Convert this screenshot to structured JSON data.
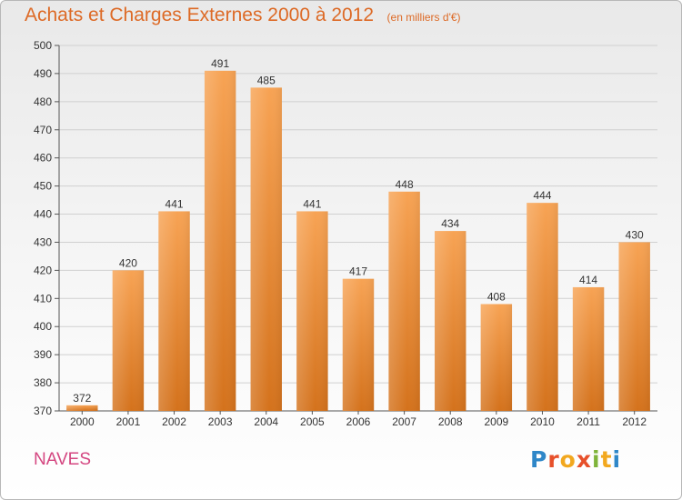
{
  "header": {
    "title": "Achats et Charges Externes 2000 à 2012",
    "subtitle": "(en milliers d'€)"
  },
  "footer": {
    "commune": "NAVES",
    "logo_text": "Proxiti"
  },
  "colors": {
    "bar_top": "#f7a354",
    "bar_bottom": "#d4721c",
    "title": "#dd6a26",
    "commune": "#d44680",
    "grid": "#d0d0d0"
  },
  "chart_data": {
    "type": "bar",
    "title": "Achats et Charges Externes 2000 à 2012",
    "subtitle": "(en milliers d'€)",
    "xlabel": "",
    "ylabel": "",
    "categories": [
      "2000",
      "2001",
      "2002",
      "2003",
      "2004",
      "2005",
      "2006",
      "2007",
      "2008",
      "2009",
      "2010",
      "2011",
      "2012"
    ],
    "values": [
      372,
      420,
      441,
      491,
      485,
      441,
      417,
      448,
      434,
      408,
      444,
      414,
      430
    ],
    "ylim": [
      370,
      500
    ],
    "yticks": [
      370,
      380,
      390,
      400,
      410,
      420,
      430,
      440,
      450,
      460,
      470,
      480,
      490,
      500
    ],
    "grid": true,
    "legend": "none"
  }
}
